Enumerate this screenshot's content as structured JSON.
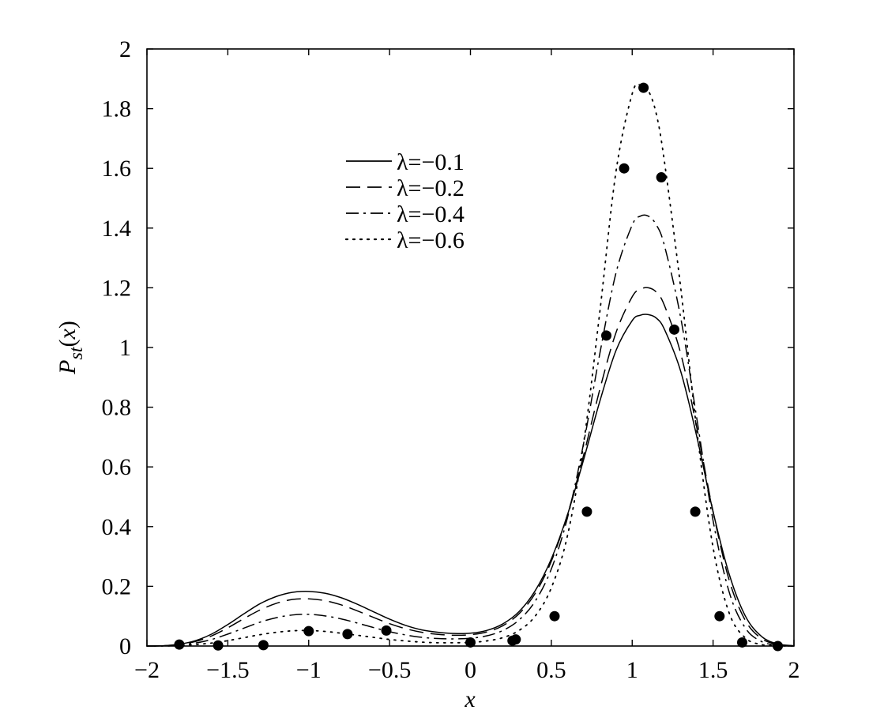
{
  "chart_data": {
    "type": "line",
    "title": "",
    "xlabel": "x",
    "ylabel": "P_st(x)",
    "xlim": [
      -2,
      2
    ],
    "ylim": [
      0,
      2
    ],
    "grid": false,
    "legend_placement": "upper-center",
    "x_ticks": [
      "−2",
      "−1.5",
      "−1",
      "−0.5",
      "0",
      "0.5",
      "1",
      "1.5",
      "2"
    ],
    "y_ticks": [
      "0",
      "0.2",
      "0.4",
      "0.6",
      "0.8",
      "1",
      "1.2",
      "1.4",
      "1.6",
      "1.8",
      "2"
    ],
    "x": [
      -2.0,
      -1.9,
      -1.8,
      -1.7,
      -1.6,
      -1.5,
      -1.4,
      -1.3,
      -1.2,
      -1.1,
      -1.0,
      -0.9,
      -0.8,
      -0.7,
      -0.6,
      -0.5,
      -0.4,
      -0.3,
      -0.2,
      -0.1,
      0.0,
      0.1,
      0.2,
      0.3,
      0.4,
      0.5,
      0.6,
      0.7,
      0.8,
      0.9,
      1.0,
      1.05,
      1.1,
      1.15,
      1.2,
      1.3,
      1.4,
      1.5,
      1.6,
      1.7,
      1.8,
      1.9,
      2.0
    ],
    "series": [
      {
        "name": "λ=−0.1",
        "dash": "solid",
        "values": [
          0.0,
          0.001,
          0.006,
          0.018,
          0.04,
          0.072,
          0.108,
          0.142,
          0.166,
          0.18,
          0.183,
          0.177,
          0.162,
          0.14,
          0.115,
          0.09,
          0.069,
          0.054,
          0.046,
          0.042,
          0.043,
          0.052,
          0.074,
          0.115,
          0.185,
          0.292,
          0.44,
          0.625,
          0.82,
          0.99,
          1.09,
          1.108,
          1.11,
          1.098,
          1.06,
          0.92,
          0.7,
          0.45,
          0.24,
          0.1,
          0.032,
          0.007,
          0.001
        ]
      },
      {
        "name": "λ=−0.2",
        "dash": "dash",
        "values": [
          0.0,
          0.001,
          0.005,
          0.015,
          0.034,
          0.061,
          0.092,
          0.121,
          0.143,
          0.156,
          0.158,
          0.152,
          0.138,
          0.118,
          0.096,
          0.075,
          0.058,
          0.046,
          0.039,
          0.036,
          0.038,
          0.047,
          0.068,
          0.108,
          0.176,
          0.284,
          0.44,
          0.64,
          0.86,
          1.05,
          1.17,
          1.195,
          1.2,
          1.185,
          1.14,
          0.98,
          0.73,
          0.45,
          0.22,
          0.085,
          0.025,
          0.005,
          0.001
        ]
      },
      {
        "name": "λ=−0.4",
        "dash": "dashdot",
        "values": [
          0.0,
          0.001,
          0.004,
          0.01,
          0.022,
          0.04,
          0.06,
          0.08,
          0.095,
          0.104,
          0.106,
          0.101,
          0.091,
          0.077,
          0.062,
          0.048,
          0.037,
          0.029,
          0.025,
          0.024,
          0.026,
          0.034,
          0.052,
          0.087,
          0.15,
          0.258,
          0.43,
          0.68,
          0.98,
          1.25,
          1.41,
          1.44,
          1.44,
          1.41,
          1.34,
          1.1,
          0.76,
          0.42,
          0.18,
          0.06,
          0.015,
          0.003,
          0.0
        ]
      },
      {
        "name": "λ=−0.6",
        "dash": "dot",
        "values": [
          0.0,
          0.0,
          0.002,
          0.005,
          0.01,
          0.018,
          0.028,
          0.038,
          0.046,
          0.051,
          0.052,
          0.049,
          0.043,
          0.036,
          0.029,
          0.022,
          0.017,
          0.013,
          0.011,
          0.011,
          0.012,
          0.017,
          0.028,
          0.052,
          0.1,
          0.195,
          0.37,
          0.68,
          1.12,
          1.59,
          1.85,
          1.88,
          1.86,
          1.78,
          1.62,
          1.2,
          0.72,
          0.33,
          0.11,
          0.027,
          0.005,
          0.001,
          0.0
        ]
      }
    ],
    "markers": {
      "x": [
        -1.8,
        -1.56,
        -1.28,
        -1.0,
        -0.76,
        -0.52,
        0.0,
        0.26,
        0.28,
        0.52,
        0.72,
        0.84,
        0.95,
        1.07,
        1.18,
        1.26,
        1.39,
        1.54,
        1.68,
        1.9
      ],
      "y": [
        0.005,
        0.002,
        0.003,
        0.05,
        0.04,
        0.052,
        0.012,
        0.018,
        0.022,
        0.1,
        0.45,
        1.04,
        1.6,
        1.87,
        1.57,
        1.06,
        0.45,
        0.1,
        0.012,
        0.0
      ]
    }
  }
}
